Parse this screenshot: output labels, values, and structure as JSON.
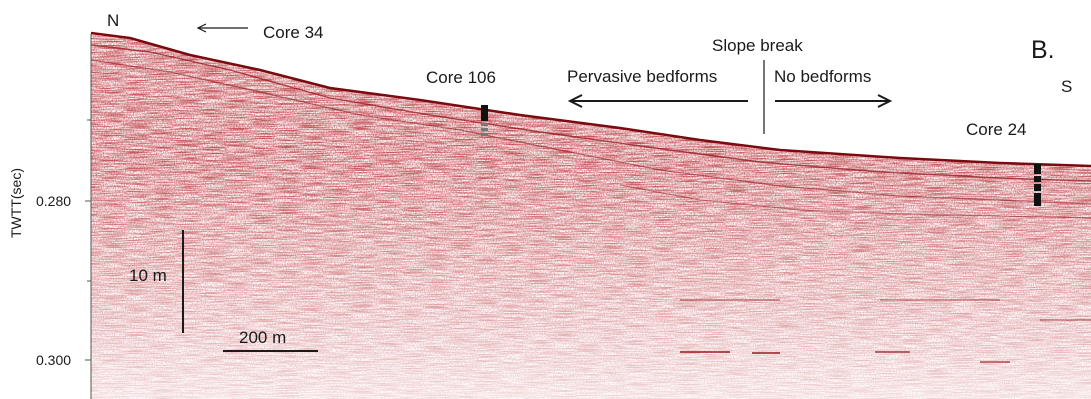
{
  "labels": {
    "north": "N",
    "south": "S",
    "panel": "B.",
    "core34": "Core 34",
    "core106": "Core 106",
    "core24": "Core 24",
    "slope_break": "Slope break",
    "pervasive": "Pervasive bedforms",
    "no_bedforms": "No bedforms",
    "scale_vertical": "10 m",
    "scale_horizontal": "200 m"
  },
  "axis": {
    "title": "TWTT(sec)",
    "ticks": [
      "0.280",
      "0.300"
    ]
  },
  "colors": {
    "reflector": "#8b0d12",
    "background": "#ffffff",
    "ink": "#1a1a1a"
  }
}
